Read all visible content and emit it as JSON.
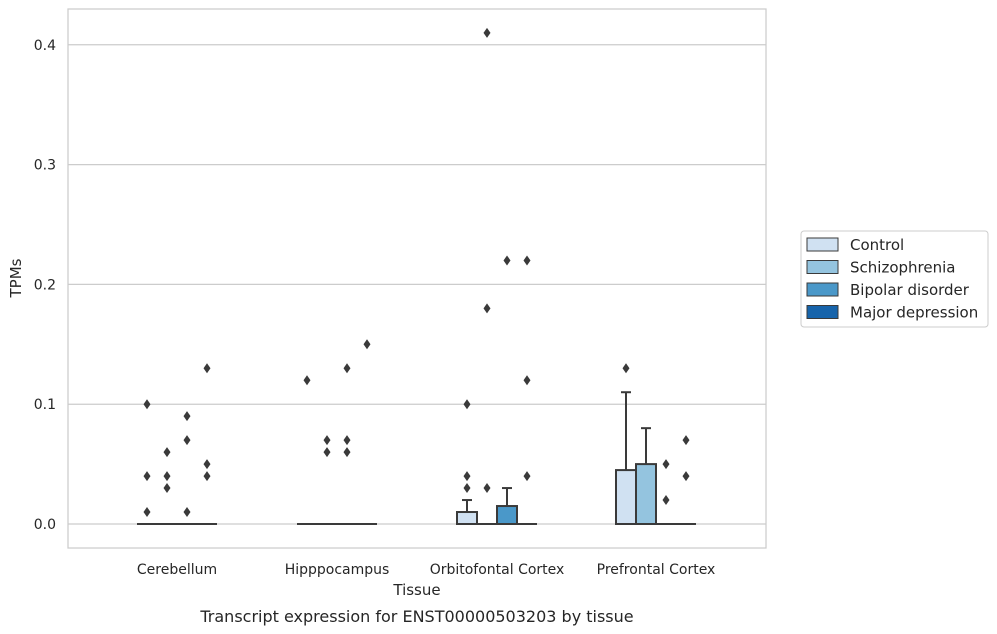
{
  "chart_data": {
    "type": "box",
    "title": "",
    "caption": "Transcript expression for ENST00000503203 by tissue",
    "xlabel": "Tissue",
    "ylabel": "TPMs",
    "ylim": [
      -0.02,
      0.43
    ],
    "yticks": [
      0.0,
      0.1,
      0.2,
      0.3,
      0.4
    ],
    "ytick_labels": [
      "0.0",
      "0.1",
      "0.2",
      "0.3",
      "0.4"
    ],
    "grid": "horizontal",
    "legend_position": "right",
    "categories": [
      "Cerebellum",
      "Hipppocampus",
      "Orbitofontal Cortex",
      "Prefrontal Cortex"
    ],
    "series": [
      {
        "name": "Control",
        "color": "#d0e1f2",
        "boxes": [
          {
            "q1": 0,
            "median": 0,
            "q3": 0,
            "whislo": 0,
            "whishi": 0,
            "fliers": [
              0.01,
              0.04,
              0.1
            ]
          },
          {
            "q1": 0,
            "median": 0,
            "q3": 0,
            "whislo": 0,
            "whishi": 0,
            "fliers": [
              0.12
            ]
          },
          {
            "q1": 0,
            "median": 0,
            "q3": 0.01,
            "whislo": 0,
            "whishi": 0.02,
            "fliers": [
              0.03,
              0.04,
              0.1
            ]
          },
          {
            "q1": 0,
            "median": 0,
            "q3": 0.045,
            "whislo": 0,
            "whishi": 0.11,
            "fliers": [
              0.13
            ]
          }
        ]
      },
      {
        "name": "Schizophrenia",
        "color": "#94c4df",
        "boxes": [
          {
            "q1": 0,
            "median": 0,
            "q3": 0,
            "whislo": 0,
            "whishi": 0,
            "fliers": [
              0.03,
              0.04,
              0.06
            ]
          },
          {
            "q1": 0,
            "median": 0,
            "q3": 0,
            "whislo": 0,
            "whishi": 0,
            "fliers": [
              0.06,
              0.07
            ]
          },
          {
            "q1": 0,
            "median": 0,
            "q3": 0,
            "whislo": 0,
            "whishi": 0,
            "fliers": [
              0.03,
              0.18,
              0.41
            ]
          },
          {
            "q1": 0,
            "median": 0,
            "q3": 0.05,
            "whislo": 0,
            "whishi": 0.08,
            "fliers": []
          }
        ]
      },
      {
        "name": "Bipolar disorder",
        "color": "#4a98c9",
        "boxes": [
          {
            "q1": 0,
            "median": 0,
            "q3": 0,
            "whislo": 0,
            "whishi": 0,
            "fliers": [
              0.01,
              0.07,
              0.09
            ]
          },
          {
            "q1": 0,
            "median": 0,
            "q3": 0,
            "whislo": 0,
            "whishi": 0,
            "fliers": [
              0.06,
              0.07,
              0.13
            ]
          },
          {
            "q1": 0,
            "median": 0,
            "q3": 0.015,
            "whislo": 0,
            "whishi": 0.03,
            "fliers": [
              0.22
            ]
          },
          {
            "q1": 0,
            "median": 0,
            "q3": 0,
            "whislo": 0,
            "whishi": 0,
            "fliers": [
              0.02,
              0.05
            ]
          }
        ]
      },
      {
        "name": "Major depression",
        "color": "#1764ab",
        "boxes": [
          {
            "q1": 0,
            "median": 0,
            "q3": 0,
            "whislo": 0,
            "whishi": 0,
            "fliers": [
              0.04,
              0.05,
              0.13
            ]
          },
          {
            "q1": 0,
            "median": 0,
            "q3": 0,
            "whislo": 0,
            "whishi": 0,
            "fliers": [
              0.15
            ]
          },
          {
            "q1": 0,
            "median": 0,
            "q3": 0,
            "whislo": 0,
            "whishi": 0,
            "fliers": [
              0.04,
              0.12,
              0.22
            ]
          },
          {
            "q1": 0,
            "median": 0,
            "q3": 0,
            "whislo": 0,
            "whishi": 0,
            "fliers": [
              0.04,
              0.07
            ]
          }
        ]
      }
    ],
    "colors": {
      "grid": "#cccccc",
      "frame": "#cccccc",
      "line": "#3a3a3a"
    }
  }
}
